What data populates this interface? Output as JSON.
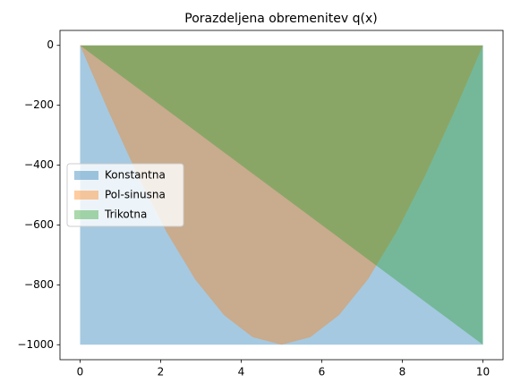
{
  "chart_data": {
    "type": "area",
    "title": "Porazdeljena obremenitev q(x)",
    "x": [
      0,
      0.714,
      1.429,
      2.143,
      2.857,
      3.571,
      4.286,
      5,
      5.714,
      6.429,
      7.143,
      7.857,
      8.571,
      9.286,
      10
    ],
    "series": [
      {
        "name": "Konstantna",
        "color": "#1f77b4",
        "values": [
          -1000,
          -1000,
          -1000,
          -1000,
          -1000,
          -1000,
          -1000,
          -1000,
          -1000,
          -1000,
          -1000,
          -1000,
          -1000,
          -1000,
          -1000
        ]
      },
      {
        "name": "Pol-sinusna",
        "color": "#ff7f0e",
        "values": [
          0,
          -223,
          -434,
          -623,
          -782,
          -901,
          -975,
          -1000,
          -975,
          -901,
          -782,
          -623,
          -434,
          -223,
          0
        ]
      },
      {
        "name": "Trikotna",
        "color": "#2ca02c",
        "values": [
          0,
          -71.4,
          -142.9,
          -214.3,
          -285.7,
          -357.1,
          -428.6,
          -500,
          -571.4,
          -642.9,
          -714.3,
          -785.7,
          -857.1,
          -928.6,
          -1000
        ]
      }
    ],
    "opacity": 0.4,
    "xlim": [
      -0.5,
      10.5
    ],
    "ylim": [
      -1050,
      50
    ],
    "xticks": [
      0,
      2,
      4,
      6,
      8,
      10
    ],
    "yticks": [
      0,
      {
        "value": -200,
        "label": "−200"
      },
      {
        "value": -400,
        "label": "−400"
      },
      {
        "value": -600,
        "label": "−600"
      },
      {
        "value": -800,
        "label": "−800"
      },
      {
        "value": -1000,
        "label": "−1000"
      }
    ],
    "legend": "center left"
  }
}
